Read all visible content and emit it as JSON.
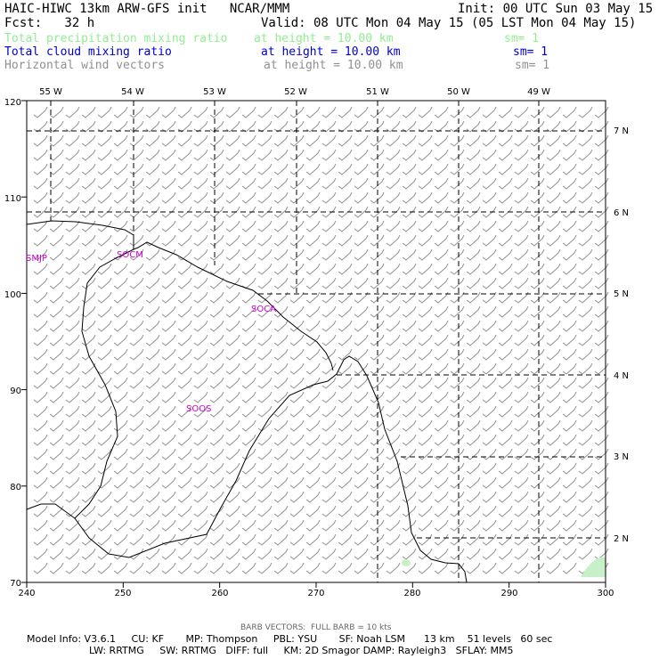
{
  "header": {
    "model_line": "HAIC-HIWC 13km ARW-GFS init   NCAR/MMM",
    "init_line": "Init: 00 UTC Sun 03 May 15",
    "fcst_line": "Fcst:   32 h",
    "valid_line": "Valid: 08 UTC Mon 04 May 15 (05 LST Mon 04 May 15)",
    "fields": [
      {
        "name": "Total precipitation mixing ratio",
        "level": "at height = 10.00 km",
        "sm": "sm= 1",
        "color": "#90ee90"
      },
      {
        "name": "Total cloud mixing ratio",
        "level": "at height = 10.00 km",
        "sm": "sm= 1",
        "color": "#0000cd"
      },
      {
        "name": "Horizontal wind vectors",
        "level": "at height = 10.00 km",
        "sm": "sm= 1",
        "color": "#909090"
      }
    ]
  },
  "map": {
    "x_ticks": [
      "240",
      "250",
      "260",
      "270",
      "280",
      "290",
      "300"
    ],
    "y_ticks": [
      "70",
      "80",
      "90",
      "100",
      "110",
      "120"
    ],
    "lon_labels": [
      "55 W",
      "54 W",
      "53 W",
      "52 W",
      "51 W",
      "50 W",
      "49 W"
    ],
    "lat_labels": [
      "7 N",
      "6 N",
      "5 N",
      "4 N",
      "3 N",
      "2 N"
    ],
    "stations": [
      "SMJP",
      "SOCM",
      "SOCA",
      "SOOS"
    ],
    "station_color": "#cc00cc",
    "barb_color": "#909090",
    "precip_color": "#c8f0c8"
  },
  "footer": {
    "barb_note": "BARB VECTORS:  FULL BARB = 10 kts",
    "model_info_1": "Model Info: V3.6.1     CU: KF       MP: Thompson     PBL: YSU       SF: Noah LSM      13 km    51 levels   60 sec",
    "model_info_2": "LW: RRTMG     SW: RRTMG   DIFF: full     KM: 2D Smagor DAMP: Rayleigh3   SFLAY: MM5"
  }
}
